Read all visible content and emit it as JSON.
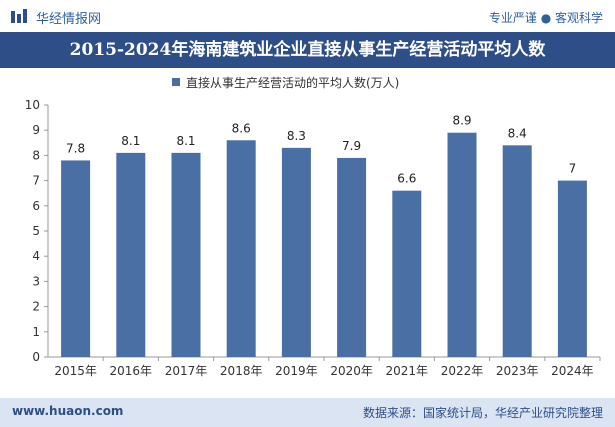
{
  "header": {
    "logo_text": "华经情报网",
    "tagline": "专业严谨 ● 客观科学"
  },
  "chart_title": "2015-2024年海南建筑业企业直接从事生产经营活动平均人数",
  "footer": {
    "website": "www.huaon.com",
    "source": "数据来源：国家统计局，华经产业研究院整理"
  },
  "colors": {
    "brand_blue": "#2e4e87",
    "bar": "#4a6fa5",
    "footer_bg": "#dbe4f2"
  },
  "chart_data": {
    "type": "bar",
    "categories": [
      "2015年",
      "2016年",
      "2017年",
      "2018年",
      "2019年",
      "2020年",
      "2021年",
      "2022年",
      "2023年",
      "2024年"
    ],
    "series": [
      {
        "name": "直接从事生产经营活动的平均人数(万人)",
        "values": [
          7.8,
          8.1,
          8.1,
          8.6,
          8.3,
          7.9,
          6.6,
          8.9,
          8.4,
          7
        ]
      }
    ],
    "value_labels": [
      "7.8",
      "8.1",
      "8.1",
      "8.6",
      "8.3",
      "7.9",
      "6.6",
      "8.9",
      "8.4",
      "7"
    ],
    "ylim": [
      0,
      10
    ],
    "yticks": [
      0,
      1,
      2,
      3,
      4,
      5,
      6,
      7,
      8,
      9,
      10
    ],
    "legend_position": "top-center",
    "grid": false
  }
}
